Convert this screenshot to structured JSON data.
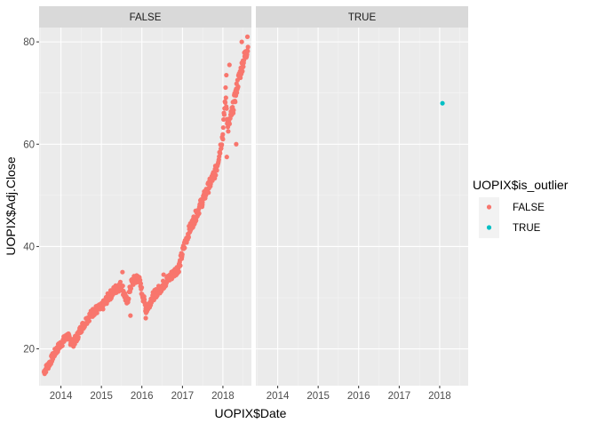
{
  "chart_data": {
    "type": "scatter",
    "facet_variable": "is_outlier",
    "panels": [
      "FALSE",
      "TRUE"
    ],
    "xlabel": "UOPIX$Date",
    "ylabel": "UOPIX$Adj.Close",
    "x_ticks": [
      "2014",
      "2015",
      "2016",
      "2017",
      "2018"
    ],
    "y_ticks": [
      20,
      40,
      60,
      80
    ],
    "xlim": [
      "2013-06-18",
      "2018-09-15"
    ],
    "ylim": [
      12.8,
      82.8
    ],
    "grid": true,
    "legend": {
      "title": "UOPIX$is_outlier",
      "position": "right",
      "entries": [
        {
          "label": "FALSE",
          "color": "#F8766D"
        },
        {
          "label": "TRUE",
          "color": "#00BFC4"
        }
      ]
    },
    "series": [
      {
        "name": "FALSE",
        "panel": "FALSE",
        "color": "#F8766D",
        "anchors": [
          [
            "2013-08-01",
            15.5
          ],
          [
            "2013-09-15",
            17.0
          ],
          [
            "2013-11-01",
            19.0
          ],
          [
            "2013-12-15",
            20.5
          ],
          [
            "2014-01-20",
            21.5
          ],
          [
            "2014-03-01",
            22.5
          ],
          [
            "2014-04-15",
            21.0
          ],
          [
            "2014-05-20",
            22.0
          ],
          [
            "2014-07-01",
            24.0
          ],
          [
            "2014-09-01",
            26.0
          ],
          [
            "2014-11-01",
            27.5
          ],
          [
            "2015-01-01",
            28.0
          ],
          [
            "2015-03-01",
            30.0
          ],
          [
            "2015-05-01",
            31.5
          ],
          [
            "2015-07-01",
            32.5
          ],
          [
            "2015-08-20",
            29.0
          ],
          [
            "2015-10-01",
            33.0
          ],
          [
            "2015-12-01",
            34.0
          ],
          [
            "2016-02-10",
            27.5
          ],
          [
            "2016-04-01",
            30.0
          ],
          [
            "2016-06-01",
            31.5
          ],
          [
            "2016-08-01",
            33.0
          ],
          [
            "2016-10-01",
            34.5
          ],
          [
            "2016-12-01",
            36.0
          ],
          [
            "2017-01-15",
            40.0
          ],
          [
            "2017-03-01",
            43.0
          ],
          [
            "2017-05-01",
            46.0
          ],
          [
            "2017-07-01",
            49.0
          ],
          [
            "2017-09-01",
            52.0
          ],
          [
            "2017-11-01",
            55.0
          ],
          [
            "2018-01-01",
            62.0
          ],
          [
            "2018-01-25",
            70.0
          ],
          [
            "2018-02-15",
            63.0
          ],
          [
            "2018-04-01",
            67.0
          ],
          [
            "2018-05-15",
            72.0
          ],
          [
            "2018-07-01",
            76.0
          ],
          [
            "2018-08-15",
            79.0
          ]
        ],
        "extra_points": [
          [
            "2015-07-10",
            35.0
          ],
          [
            "2015-09-20",
            26.5
          ],
          [
            "2016-02-05",
            26.0
          ],
          [
            "2016-07-15",
            34.5
          ],
          [
            "2018-02-01",
            73.5
          ],
          [
            "2018-03-01",
            75.5
          ],
          [
            "2018-06-20",
            80.0
          ],
          [
            "2018-08-10",
            81.0
          ],
          [
            "2018-05-01",
            60.0
          ],
          [
            "2018-02-05",
            57.5
          ]
        ]
      },
      {
        "name": "TRUE",
        "panel": "TRUE",
        "color": "#00BFC4",
        "points": [
          [
            "2018-01-26",
            68.0
          ]
        ]
      }
    ]
  }
}
